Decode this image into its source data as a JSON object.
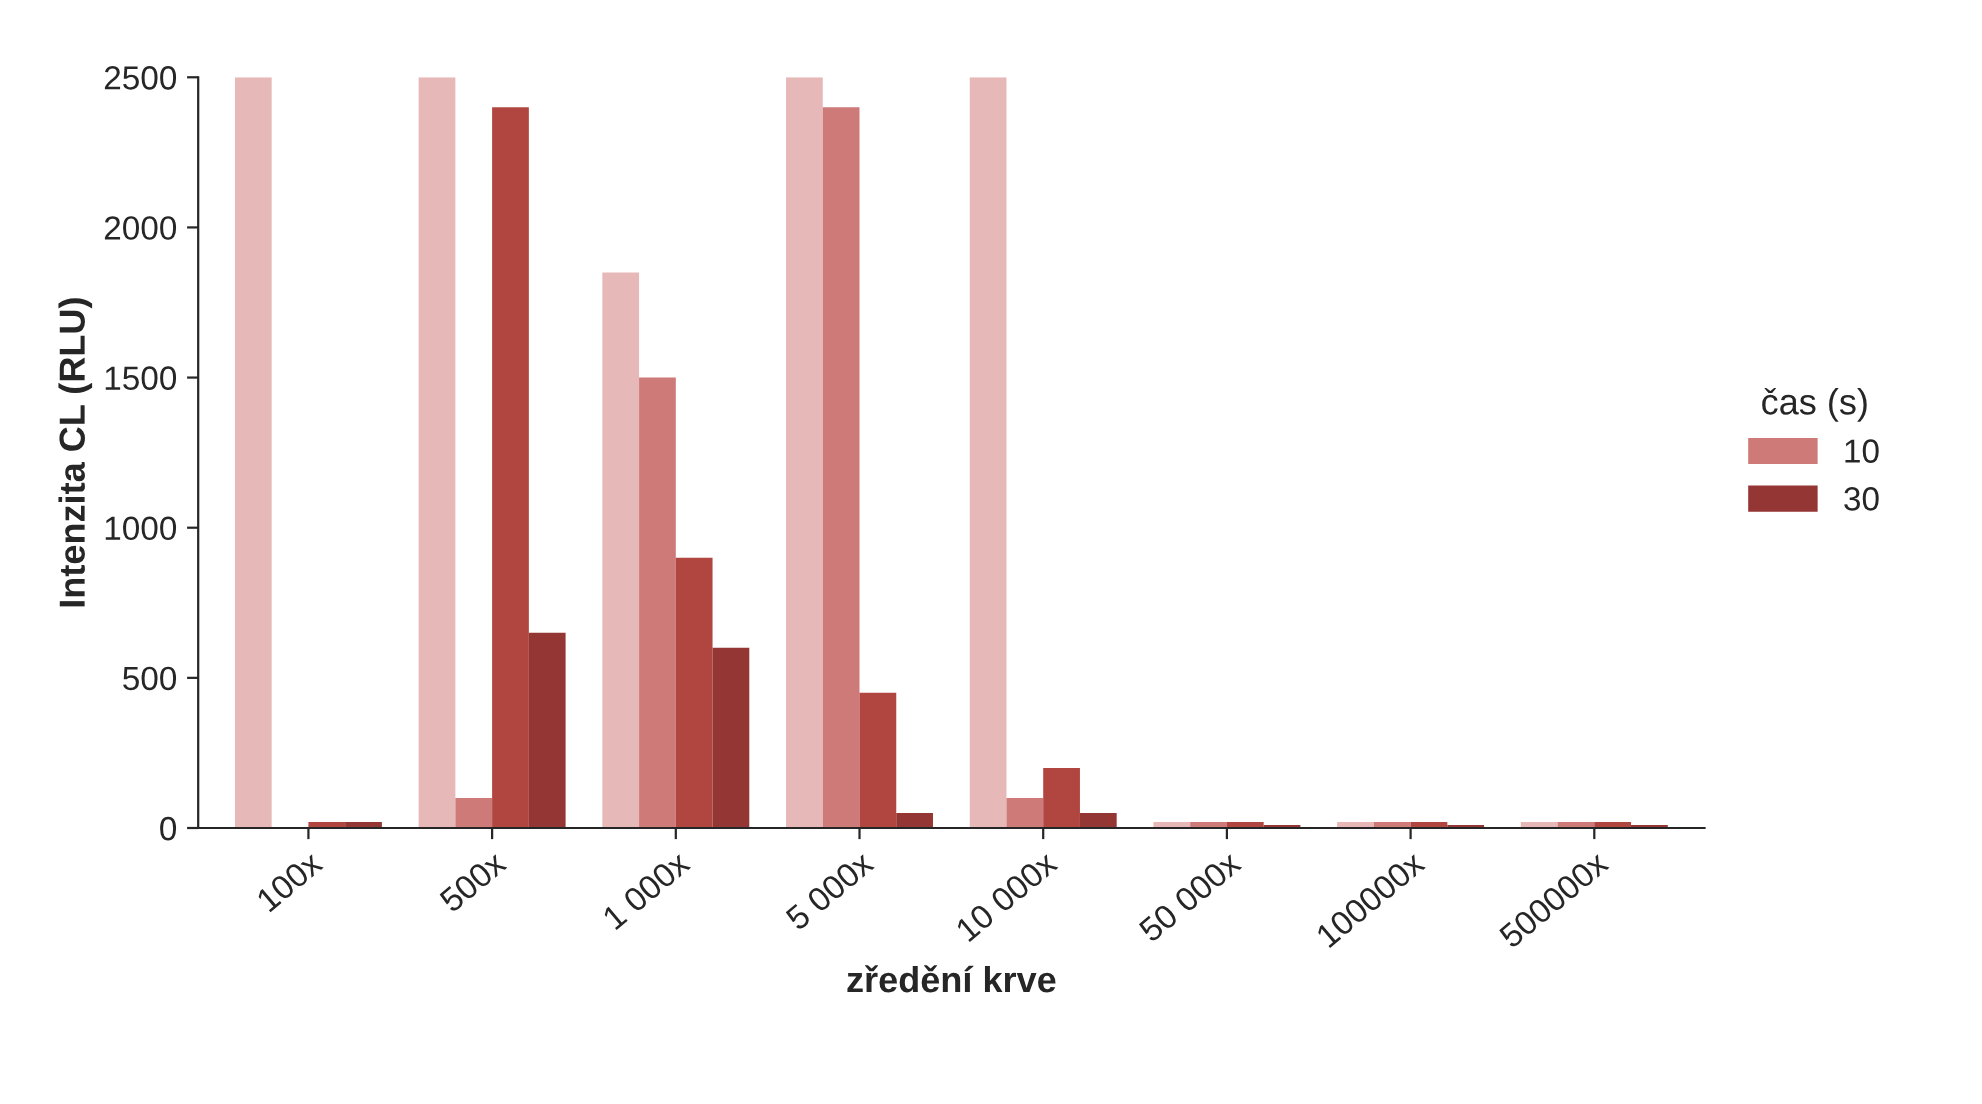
{
  "chart_data": {
    "type": "bar",
    "xlabel": "zředění krve",
    "ylabel": "Intenzita CL (RLU)",
    "legend_title": "čas (s)",
    "categories": [
      "100x",
      "500x",
      "1 000x",
      "5 000x",
      "10 000x",
      "50 000x",
      "100000x",
      "500000x"
    ],
    "series": [
      {
        "color": "#e6b9b8",
        "values": [
          2500,
          2500,
          1850,
          2500,
          2500,
          20,
          20,
          20
        ]
      },
      {
        "name": "10",
        "color": "#cd7a78",
        "values": [
          null,
          100,
          1500,
          2400,
          100,
          20,
          20,
          20
        ]
      },
      {
        "color": "#b0463f",
        "values": [
          20,
          2400,
          900,
          450,
          200,
          20,
          20,
          20
        ]
      },
      {
        "name": "30",
        "color": "#943634",
        "values": [
          20,
          650,
          600,
          50,
          50,
          10,
          10,
          10
        ]
      }
    ],
    "ylim": [
      0,
      2500
    ],
    "yticks": [
      0,
      500,
      1000,
      1500,
      2000,
      2500
    ],
    "grid": false,
    "legend": "right"
  }
}
